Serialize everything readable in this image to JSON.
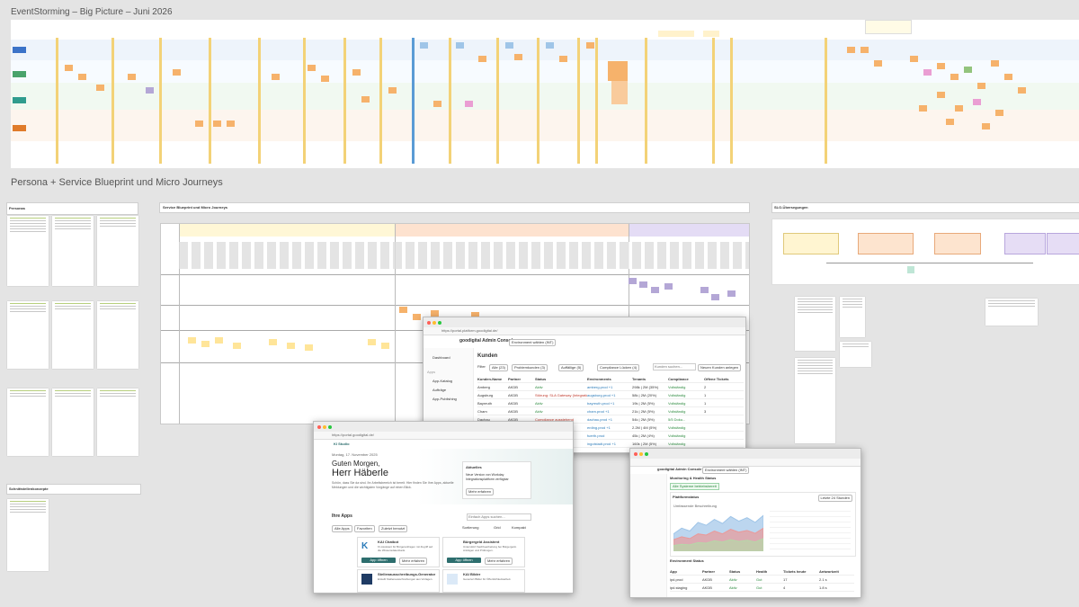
{
  "board_title": "EventStorming – Big Picture – Juni 2026",
  "section_title": "Persona + Service Blueprint und Micro Journeys",
  "frames": {
    "personas": "Personas",
    "blueprint": "Service Blueprint und Micro Journeys",
    "slo": "SLO-Übersegungen",
    "schnittstellen": "Schnittstellenkonzepte"
  },
  "admin_console": {
    "app_title": "goodigital Admin Console",
    "url": "https://portal.platform.goodigital.de/",
    "env_select": "Environment wählen (INT)",
    "nav": [
      "Dashboard",
      "Apps",
      "App-Katalog",
      "Aufträge",
      "App-Publishing"
    ],
    "page_title": "Kunden",
    "filter_label": "Filter",
    "filters": [
      "Alle (23)",
      "Problemkunden (3)",
      "Auffällige (5)",
      "Compliance Lücken (4)"
    ],
    "search_placeholder": "Kunden suchen...",
    "new_button": "Neuen Kunden anlegen",
    "columns": [
      "Kunden-Name",
      "Partner",
      "Status",
      "Environments",
      "Tenants",
      "Compliance",
      "Offene Tickets"
    ],
    "rows": [
      {
        "name": "Amberg",
        "partner": "AKDB",
        "status": "Aktiv",
        "env": "amberg.prod +1",
        "tenants": "298k | 2M (35%)",
        "compliance": "Vollständig",
        "tickets": "2",
        "status_color": "green"
      },
      {
        "name": "Augsburg",
        "partner": "AKDB",
        "status": "Störung: SLA Gateway (Integrationsfehler)",
        "env": "augsburg.prod +1",
        "tenants": "58k | 2M (20%)",
        "compliance": "Vollständig",
        "tickets": "1",
        "status_color": "red"
      },
      {
        "name": "Bayreuth",
        "partner": "AKDB",
        "status": "Aktiv",
        "env": "bayreuth.prod +1",
        "tenants": "19k | 2M (5%)",
        "compliance": "Vollständig",
        "tickets": "1",
        "status_color": "green"
      },
      {
        "name": "Cham",
        "partner": "AKDB",
        "status": "Aktiv",
        "env": "cham.prod +1",
        "tenants": "21k | 2M (5%)",
        "compliance": "Vollständig",
        "tickets": "3",
        "status_color": "green"
      },
      {
        "name": "Dachau",
        "partner": "AKDB",
        "status": "Compliance ausstehend",
        "env": "dachau.prod +1",
        "tenants": "54k | 2M (5%)",
        "compliance": "5/5 Doku...",
        "tickets": "",
        "status_color": "red"
      },
      {
        "name": "Erding",
        "partner": "AKDB",
        "status": "Aktiv",
        "env": "erding.prod +1",
        "tenants": "2.2M | 4M (5%)",
        "compliance": "Vollständig",
        "tickets": "",
        "status_color": "green"
      },
      {
        "name": "Fürth",
        "partner": "AKDB",
        "status": "Aktiv",
        "env": "fuerth.prod",
        "tenants": "45k | 2M (4%)",
        "compliance": "Vollständig",
        "tickets": "",
        "status_color": "green"
      },
      {
        "name": "Ingolstadt",
        "partner": "AKDB",
        "status": "Aktiv",
        "env": "ingolstadt.prod +1",
        "tenants": "160k | 2M (5%)",
        "compliance": "Vollständig",
        "tickets": "",
        "status_color": "green"
      }
    ]
  },
  "home_portal": {
    "url": "https://portal.goodigital.de/",
    "brand": "KI Studio",
    "date": "Montag, 17. November 2025",
    "greeting": "Guten Morgen,",
    "name": "Herr Häberle",
    "intro": "Schön, dass Sie da sind. Ihr Arbeitsbereich ist bereit. Hier finden Sie Ihre Apps, aktuelle Meldungen und die wichtigsten Vorgänge auf einen Blick.",
    "news_title": "Aktuelles",
    "news_text": "Neue Version von Workday Integrationsplattform verfügbar",
    "news_link": "Mehr erfahren",
    "apps_title": "Ihre Apps",
    "search_placeholder": "Einfach Apps suchen...",
    "tabs": [
      "Alle Apps",
      "Favoriten",
      "Zuletzt benutzt"
    ],
    "toggles": [
      "Sortierung",
      "Grid",
      "Kompakt"
    ],
    "apps": [
      {
        "name": "KAI Chatbot",
        "desc": "KI-Assistent für Bürgeranfragen mit Zugriff auf die Wissensdatenbank.",
        "open": "App öffnen",
        "more": "Mehr erfahren"
      },
      {
        "name": "Bürgergeld Assistent",
        "desc": "Unterstützt Sachbearbeitung bei Bürgergeld-Anträgen und Prüfungen.",
        "open": "App öffnen",
        "more": "Mehr erfahren"
      },
      {
        "name": "Stellenausschreibungs-Generator",
        "desc": "Erstellt Stellenausschreibungen aus Vorlagen.",
        "open": "",
        "more": ""
      },
      {
        "name": "KAI Bilder",
        "desc": "Generiert Bilder für Öffentlichkeitsarbeit.",
        "open": "",
        "more": ""
      }
    ]
  },
  "monitoring": {
    "app_title": "goodigital Admin Console",
    "env_select": "Environment wählen (INT)",
    "page_title": "Monitoring & Health Status",
    "status_ok": "Alle Systeme betriebsbereit",
    "chart_title": "Plattformstatus",
    "chart_range": "Letzte 24 Stunden",
    "sub_title": "Umfassende Beschreibung",
    "section2": "Environment Status",
    "columns": [
      "App",
      "Partner",
      "Status",
      "Health",
      "Tickets heute",
      "Antwortzeit"
    ],
    "rows": [
      {
        "app": "ipd.prod",
        "partner": "AKDB",
        "status": "Aktiv",
        "health": "Gut",
        "tickets": "17",
        "time": "2.1 s"
      },
      {
        "app": "ipd.staging",
        "partner": "AKDB",
        "status": "Aktiv",
        "health": "Gut",
        "tickets": "4",
        "time": "1.8 s"
      }
    ],
    "chart_data": {
      "type": "area",
      "title": "",
      "series": [
        {
          "name": "",
          "values": [
            30,
            40,
            35,
            50,
            45,
            55,
            48,
            60,
            52,
            58,
            50,
            62
          ]
        },
        {
          "name": "",
          "values": [
            20,
            25,
            22,
            30,
            28,
            35,
            30,
            38,
            33,
            36,
            31,
            40
          ]
        },
        {
          "name": "",
          "values": [
            10,
            12,
            11,
            15,
            14,
            18,
            16,
            20,
            17,
            19,
            16,
            22
          ]
        }
      ]
    }
  }
}
